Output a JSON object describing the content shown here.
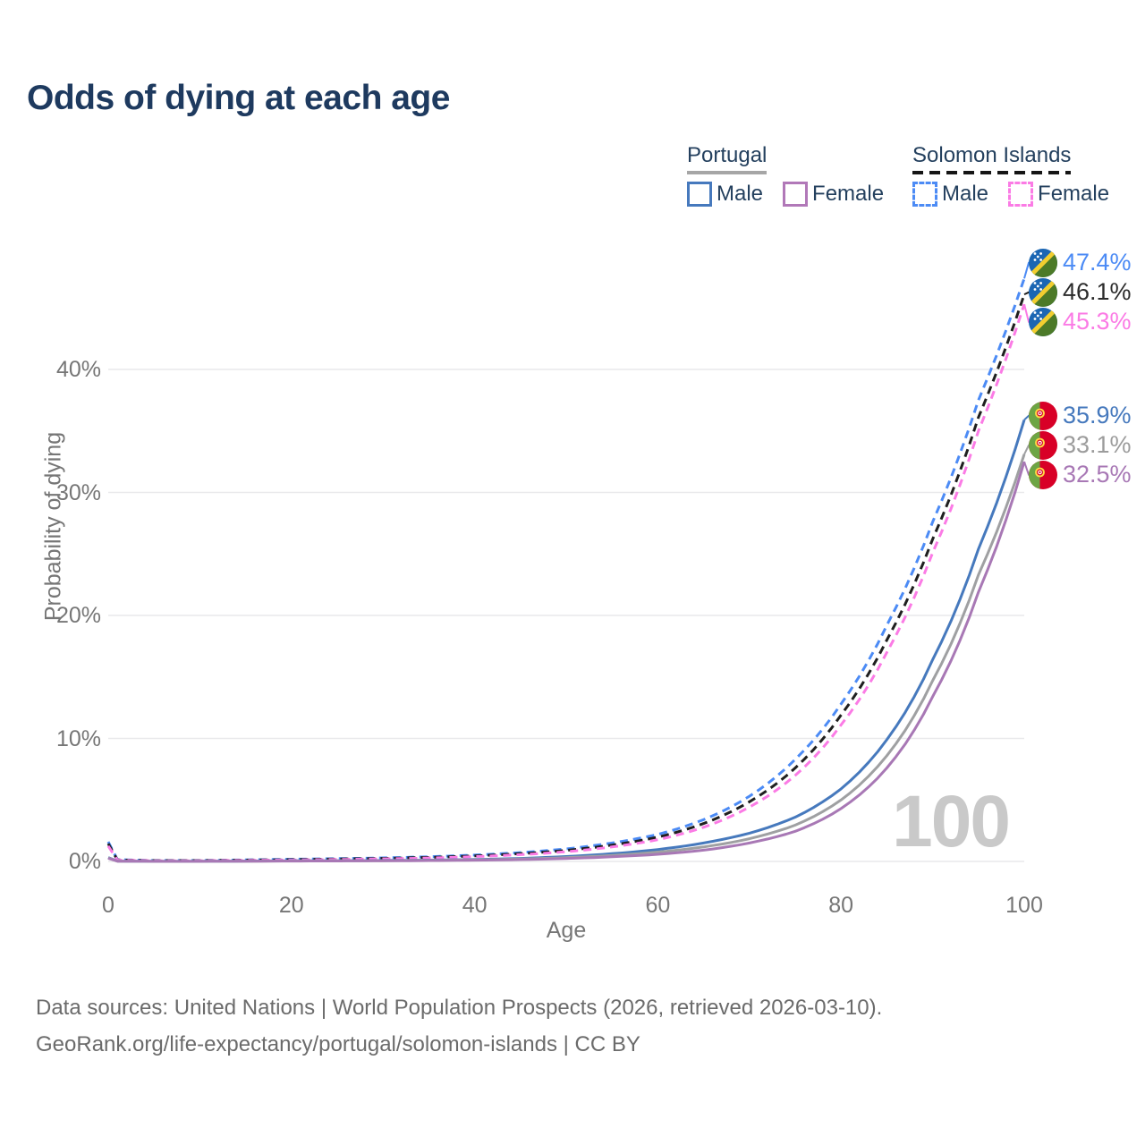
{
  "title": "Odds of dying at each age",
  "legend": {
    "groups": [
      {
        "name": "Portugal",
        "underline_style": "solid",
        "underline_color": "#a6a6a6",
        "items": [
          {
            "label": "Male",
            "color": "#4679bd",
            "dashed": false
          },
          {
            "label": "Female",
            "color": "#b178b8",
            "dashed": false
          }
        ]
      },
      {
        "name": "Solomon Islands",
        "underline_style": "dashed",
        "underline_color": "#151515",
        "items": [
          {
            "label": "Male",
            "color": "#4c8bf5",
            "dashed": true
          },
          {
            "label": "Female",
            "color": "#fb7be5",
            "dashed": true
          }
        ]
      }
    ]
  },
  "watermark": "100",
  "axes": {
    "xlabel": "Age",
    "ylabel": "Probability of dying",
    "x_ticks": [
      0,
      20,
      40,
      60,
      80,
      100
    ],
    "y_ticks": [
      0,
      10,
      20,
      30,
      40
    ],
    "y_tick_suffix": "%"
  },
  "chart_data": {
    "type": "line",
    "title": "Odds of dying at each age",
    "xlabel": "Age",
    "ylabel": "Probability of dying",
    "xlim": [
      0,
      100
    ],
    "ylim": [
      0,
      47.5
    ],
    "grid": "horizontal",
    "legend_position": "top-right",
    "x_ages": [
      0,
      1,
      5,
      10,
      15,
      20,
      25,
      30,
      35,
      40,
      45,
      50,
      55,
      60,
      65,
      70,
      75,
      80,
      85,
      90,
      95,
      100
    ],
    "series": [
      {
        "name": "Solomon Islands Male",
        "country": "Solomon Islands",
        "sex": "Male",
        "color": "#4c8bf5",
        "dashed": true,
        "label_color": "#4c8bf5",
        "end_label": "47.4%",
        "flag": "solomon-islands",
        "values": [
          1.6,
          0.15,
          0.08,
          0.08,
          0.13,
          0.18,
          0.23,
          0.29,
          0.38,
          0.52,
          0.72,
          1.02,
          1.5,
          2.2,
          3.4,
          5.3,
          8.3,
          12.8,
          19.2,
          27.6,
          37.5,
          47.4
        ]
      },
      {
        "name": "Solomon Islands Both sexes",
        "country": "Solomon Islands",
        "sex": "Both",
        "color": "#1f1f1f",
        "dashed": true,
        "label_color": "#2b2b2b",
        "end_label": "46.1%",
        "flag": "solomon-islands",
        "values": [
          1.45,
          0.13,
          0.07,
          0.07,
          0.11,
          0.15,
          0.2,
          0.25,
          0.33,
          0.45,
          0.63,
          0.9,
          1.33,
          1.98,
          3.08,
          4.85,
          7.6,
          11.9,
          18.0,
          26.2,
          36.1,
          46.1
        ]
      },
      {
        "name": "Solomon Islands Female",
        "country": "Solomon Islands",
        "sex": "Female",
        "color": "#fb7be5",
        "dashed": true,
        "label_color": "#fb7be5",
        "end_label": "45.3%",
        "flag": "solomon-islands",
        "values": [
          1.25,
          0.11,
          0.06,
          0.06,
          0.09,
          0.12,
          0.16,
          0.21,
          0.28,
          0.39,
          0.55,
          0.79,
          1.18,
          1.77,
          2.78,
          4.42,
          7.0,
          11.1,
          17.0,
          25.1,
          35.0,
          45.3
        ]
      },
      {
        "name": "Portugal Male",
        "country": "Portugal",
        "sex": "Male",
        "color": "#4679bd",
        "dashed": false,
        "label_color": "#4679bd",
        "end_label": "35.9%",
        "flag": "portugal",
        "values": [
          0.32,
          0.03,
          0.01,
          0.01,
          0.03,
          0.05,
          0.06,
          0.08,
          0.11,
          0.16,
          0.25,
          0.4,
          0.63,
          0.97,
          1.5,
          2.3,
          3.6,
          5.9,
          9.9,
          16.4,
          25.4,
          35.9
        ]
      },
      {
        "name": "Portugal Both sexes",
        "country": "Portugal",
        "sex": "Both",
        "color": "#9fa0a2",
        "dashed": false,
        "label_color": "#9c9c9c",
        "end_label": "33.1%",
        "flag": "portugal",
        "values": [
          0.29,
          0.025,
          0.01,
          0.01,
          0.02,
          0.04,
          0.05,
          0.06,
          0.09,
          0.13,
          0.2,
          0.31,
          0.49,
          0.76,
          1.18,
          1.85,
          2.95,
          5.0,
          8.6,
          14.7,
          23.3,
          33.1
        ]
      },
      {
        "name": "Portugal Female",
        "country": "Portugal",
        "sex": "Female",
        "color": "#a878b5",
        "dashed": false,
        "label_color": "#a878b5",
        "end_label": "32.5%",
        "flag": "portugal",
        "values": [
          0.26,
          0.02,
          0.01,
          0.01,
          0.02,
          0.03,
          0.04,
          0.05,
          0.07,
          0.1,
          0.15,
          0.24,
          0.38,
          0.58,
          0.92,
          1.5,
          2.45,
          4.3,
          7.6,
          13.4,
          21.9,
          32.5
        ]
      }
    ]
  },
  "footer": {
    "line1": "Data sources: United Nations | World Population Prospects (2026, retrieved 2026-03-10).",
    "line2": "GeoRank.org/life-expectancy/portugal/solomon-islands | CC BY"
  },
  "colors": {
    "title": "#1e3a5f",
    "legend_text": "#24405e",
    "axis_text": "#767676",
    "gridline": "#e9e9eb",
    "watermark": "#c9c9c9",
    "footer_text": "#6b6b6b"
  }
}
